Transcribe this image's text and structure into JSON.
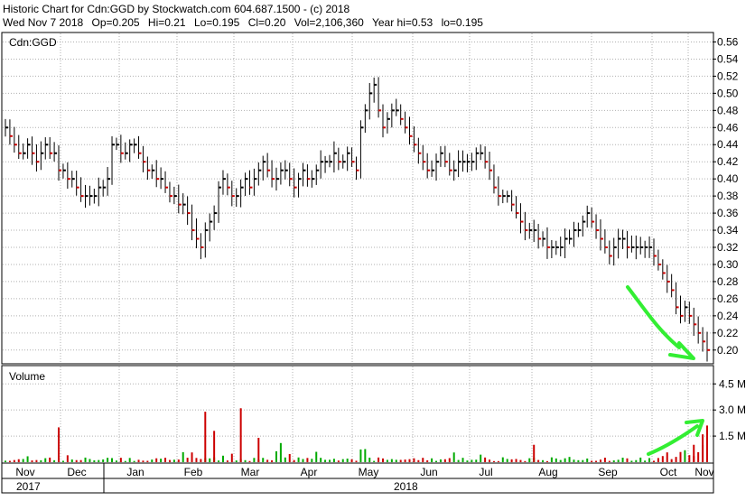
{
  "header": {
    "title": "Historic Chart for Cdn:GGD by Stockwatch.com 604.687.1500 - (c) 2018",
    "quote": {
      "date": "Wed Nov  7 2018",
      "open": "Op=0.205",
      "high": "Hi=0.21",
      "low": "Lo=0.195",
      "close": "Cl=0.20",
      "volume": "Vol=2,106,360",
      "year_high": "Year hi=0.53",
      "year_low": "lo=0.195"
    }
  },
  "colors": {
    "up": "#000000",
    "down": "#cc0000",
    "vol_up": "#00aa00",
    "vol_down": "#cc0000",
    "annotation": "#33ee33",
    "grid": "#b0b0b0"
  },
  "chart_data": [
    {
      "type": "ohlc",
      "legend": "Cdn:GGD",
      "ylim": [
        0.185,
        0.57
      ],
      "yticks": [
        "0.56",
        "0.54",
        "0.52",
        "0.50",
        "0.48",
        "0.46",
        "0.44",
        "0.42",
        "0.40",
        "0.38",
        "0.36",
        "0.34",
        "0.32",
        "0.30",
        "0.28",
        "0.26",
        "0.24",
        "0.22",
        "0.20"
      ],
      "months": [
        "Nov",
        "Dec",
        "Jan",
        "Feb",
        "Mar",
        "Apr",
        "May",
        "Jun",
        "Jul",
        "Aug",
        "Sep",
        "Oct",
        "Nov"
      ],
      "years": [
        "2017",
        "2018"
      ],
      "grid": true,
      "close": [
        0.46,
        0.45,
        0.44,
        0.43,
        0.43,
        0.44,
        0.43,
        0.42,
        0.43,
        0.44,
        0.43,
        0.43,
        0.41,
        0.41,
        0.4,
        0.4,
        0.39,
        0.38,
        0.38,
        0.38,
        0.38,
        0.39,
        0.39,
        0.4,
        0.44,
        0.44,
        0.43,
        0.43,
        0.44,
        0.44,
        0.43,
        0.42,
        0.41,
        0.41,
        0.4,
        0.4,
        0.39,
        0.38,
        0.38,
        0.37,
        0.37,
        0.36,
        0.34,
        0.33,
        0.32,
        0.34,
        0.35,
        0.36,
        0.39,
        0.4,
        0.39,
        0.38,
        0.38,
        0.39,
        0.4,
        0.39,
        0.4,
        0.41,
        0.42,
        0.41,
        0.4,
        0.4,
        0.41,
        0.41,
        0.4,
        0.39,
        0.4,
        0.41,
        0.4,
        0.4,
        0.41,
        0.42,
        0.42,
        0.42,
        0.43,
        0.42,
        0.42,
        0.43,
        0.42,
        0.41,
        0.46,
        0.48,
        0.5,
        0.51,
        0.48,
        0.46,
        0.47,
        0.48,
        0.48,
        0.47,
        0.46,
        0.45,
        0.44,
        0.43,
        0.42,
        0.41,
        0.41,
        0.42,
        0.43,
        0.42,
        0.41,
        0.41,
        0.42,
        0.42,
        0.42,
        0.42,
        0.43,
        0.43,
        0.42,
        0.41,
        0.39,
        0.38,
        0.38,
        0.38,
        0.37,
        0.36,
        0.35,
        0.34,
        0.34,
        0.34,
        0.33,
        0.33,
        0.32,
        0.32,
        0.32,
        0.32,
        0.33,
        0.33,
        0.34,
        0.34,
        0.35,
        0.36,
        0.35,
        0.34,
        0.33,
        0.32,
        0.31,
        0.32,
        0.33,
        0.33,
        0.32,
        0.32,
        0.32,
        0.32,
        0.32,
        0.32,
        0.31,
        0.3,
        0.29,
        0.28,
        0.27,
        0.25,
        0.24,
        0.25,
        0.24,
        0.23,
        0.22,
        0.21,
        0.2
      ],
      "volume_ylim": [
        0,
        5500000
      ],
      "volume_ticks": [
        "4.5 M",
        "3.0 M",
        "1.5 M"
      ],
      "volume_label": "Volume"
    }
  ]
}
